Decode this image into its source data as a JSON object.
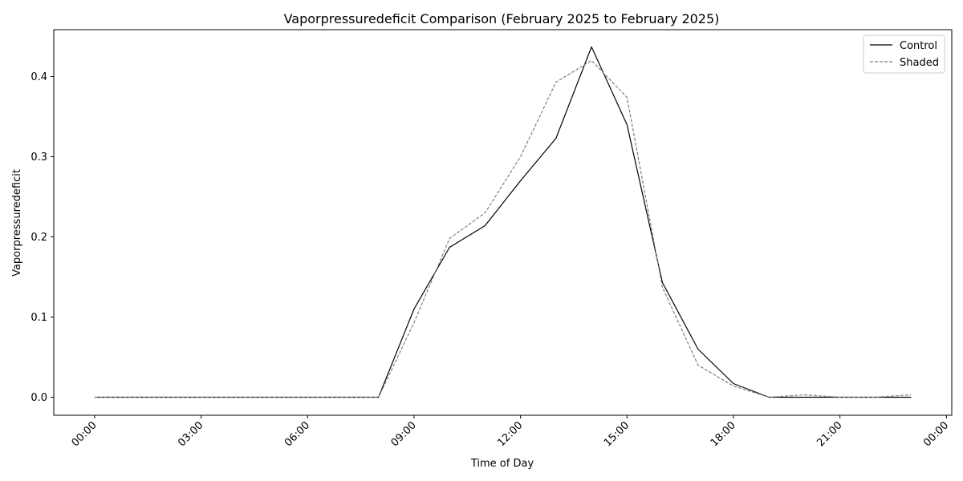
{
  "chart_data": {
    "type": "line",
    "title": "Vaporpressuredeficit Comparison (February 2025 to February 2025)",
    "xlabel": "Time of Day",
    "ylabel": "Vaporpressuredeficit",
    "x": [
      0,
      1,
      2,
      3,
      4,
      5,
      6,
      7,
      8,
      9,
      10,
      11,
      12,
      13,
      14,
      15,
      16,
      17,
      18,
      19,
      20,
      21,
      22,
      23
    ],
    "xlim": [
      -1.15,
      24.15
    ],
    "ylim": [
      -0.0225,
      0.4585
    ],
    "x_ticks": [
      0,
      3,
      6,
      9,
      12,
      15,
      18,
      21,
      24
    ],
    "x_tick_labels": [
      "00:00",
      "03:00",
      "06:00",
      "09:00",
      "12:00",
      "15:00",
      "18:00",
      "21:00",
      "00:00"
    ],
    "y_ticks": [
      0.0,
      0.1,
      0.2,
      0.3,
      0.4
    ],
    "y_tick_labels": [
      "0.0",
      "0.1",
      "0.2",
      "0.3",
      "0.4"
    ],
    "grid": false,
    "legend_position": "top-right",
    "series": [
      {
        "name": "Control",
        "color": "#000000",
        "style": "solid",
        "values": [
          0,
          0,
          0,
          0,
          0,
          0,
          0,
          0,
          0,
          0.11,
          0.187,
          0.214,
          0.27,
          0.323,
          0.437,
          0.34,
          0.143,
          0.06,
          0.017,
          0.0,
          0.0,
          0.0,
          0.0,
          0.0
        ]
      },
      {
        "name": "Shaded",
        "color": "#808080",
        "style": "dashed",
        "values": [
          0,
          0,
          0,
          0,
          0,
          0,
          0,
          0,
          0,
          0.093,
          0.198,
          0.23,
          0.3,
          0.393,
          0.42,
          0.374,
          0.137,
          0.04,
          0.014,
          0.0,
          0.003,
          0.0,
          0.0,
          0.003
        ]
      }
    ]
  }
}
